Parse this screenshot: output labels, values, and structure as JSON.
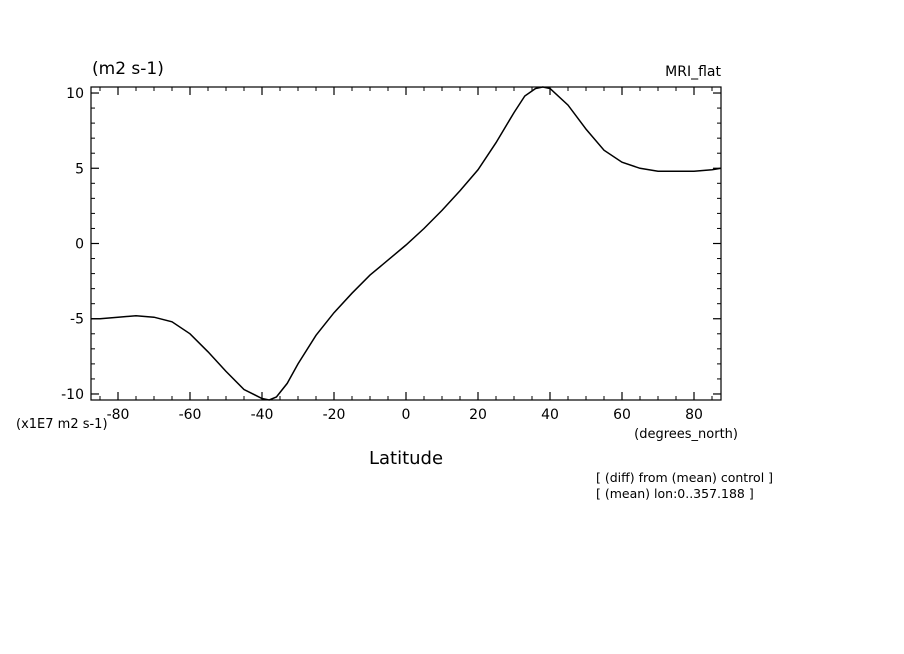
{
  "chart_data": {
    "type": "line",
    "title": "(m2 s-1)",
    "model_label": "MRI_flat",
    "xlabel": "Latitude",
    "x_units": "(degrees_north)",
    "y_units": "(x1E7 m2 s-1)",
    "xlim": [
      -87.5,
      87.5
    ],
    "ylim": [
      -10.4,
      10.4
    ],
    "x_ticks": [
      -80,
      -60,
      -40,
      -20,
      0,
      20,
      40,
      60,
      80
    ],
    "x_tick_labels": [
      "-80",
      "-60",
      "-40",
      "-20",
      "0",
      "20",
      "40",
      "60",
      "80"
    ],
    "y_ticks": [
      10,
      5,
      0,
      -5,
      -10
    ],
    "y_tick_labels": [
      "10",
      "5",
      "0",
      "-5",
      "-10"
    ],
    "grid": false,
    "notes": [
      "[ (diff) from (mean) control ]",
      "[ (mean) lon:0..357.188 ]"
    ],
    "series": [
      {
        "x": [
          -87.5,
          -85,
          -80,
          -75,
          -70,
          -65,
          -60,
          -55,
          -50,
          -45,
          -40,
          -38,
          -36,
          -33,
          -30,
          -25,
          -20,
          -15,
          -10,
          -5,
          0,
          5,
          10,
          15,
          20,
          25,
          30,
          33,
          36,
          38,
          40,
          45,
          50,
          55,
          60,
          65,
          70,
          75,
          80,
          85,
          87.5
        ],
        "y": [
          -5.0,
          -5.0,
          -4.9,
          -4.8,
          -4.9,
          -5.2,
          -6.0,
          -7.2,
          -8.5,
          -9.7,
          -10.3,
          -10.4,
          -10.2,
          -9.3,
          -8.0,
          -6.1,
          -4.6,
          -3.3,
          -2.1,
          -1.1,
          -0.1,
          1.0,
          2.2,
          3.5,
          4.9,
          6.7,
          8.7,
          9.8,
          10.3,
          10.4,
          10.3,
          9.2,
          7.6,
          6.2,
          5.4,
          5.0,
          4.8,
          4.8,
          4.8,
          4.9,
          5.0
        ]
      }
    ]
  }
}
